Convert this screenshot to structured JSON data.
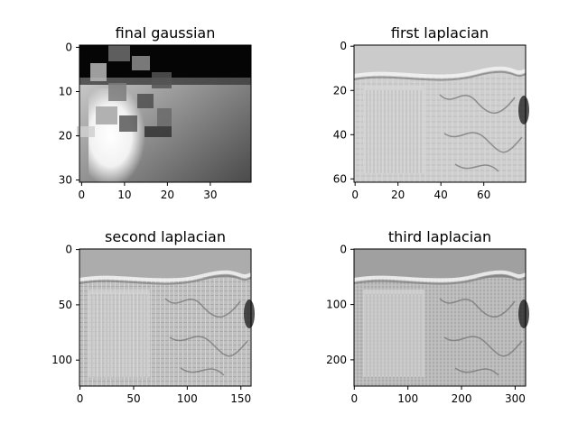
{
  "figure": {
    "panels": [
      {
        "title": "final gaussian",
        "x_ticks": [
          "0",
          "10",
          "20",
          "30"
        ],
        "y_ticks": [
          "0",
          "10",
          "20",
          "30"
        ],
        "x_tick_values": [
          0,
          10,
          20,
          30
        ],
        "y_tick_values": [
          0,
          10,
          20,
          30
        ],
        "x_range": [
          -0.5,
          39.5
        ],
        "y_range": [
          -0.5,
          30.5
        ],
        "image_description_color": "#8a8a8a"
      },
      {
        "title": "first laplacian",
        "x_ticks": [
          "0",
          "20",
          "40",
          "60"
        ],
        "y_ticks": [
          "0",
          "20",
          "40",
          "60"
        ],
        "x_tick_values": [
          0,
          20,
          40,
          60
        ],
        "y_tick_values": [
          0,
          20,
          40,
          60
        ],
        "x_range": [
          -0.5,
          79.5
        ],
        "y_range": [
          -0.5,
          61.5
        ],
        "image_description_color": "#cfcfcf"
      },
      {
        "title": "second laplacian",
        "x_ticks": [
          "0",
          "50",
          "100",
          "150"
        ],
        "y_ticks": [
          "0",
          "50",
          "100"
        ],
        "x_tick_values": [
          0,
          50,
          100,
          150
        ],
        "y_tick_values": [
          0,
          50,
          100
        ],
        "x_range": [
          -0.5,
          159.5
        ],
        "y_range": [
          -0.5,
          123.5
        ],
        "image_description_color": "#bdbdbd"
      },
      {
        "title": "third laplacian",
        "x_ticks": [
          "0",
          "100",
          "200",
          "300"
        ],
        "y_ticks": [
          "0",
          "100",
          "200"
        ],
        "x_tick_values": [
          0,
          100,
          200,
          300
        ],
        "y_tick_values": [
          0,
          100,
          200
        ],
        "x_range": [
          -0.5,
          319.5
        ],
        "y_range": [
          -0.5,
          247.5
        ],
        "image_description_color": "#b3b3b3"
      }
    ]
  }
}
